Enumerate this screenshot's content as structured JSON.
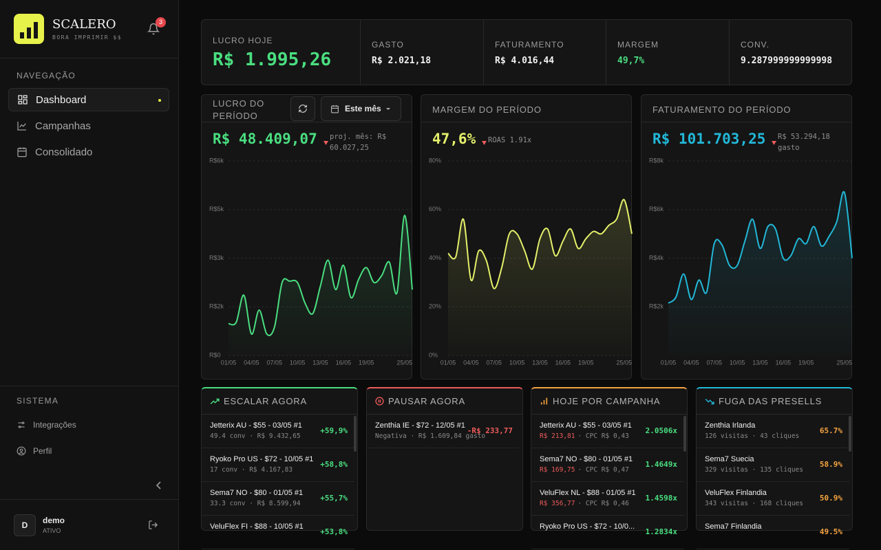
{
  "sidebar": {
    "brand": "SCALERO",
    "tagline": "BORA IMPRIMIR $$",
    "notifications": "3",
    "nav_title": "NAVEGAÇÃO",
    "nav": [
      "Dashboard",
      "Campanhas",
      "Consolidado"
    ],
    "system_title": "SISTEMA",
    "system": [
      "Integrações",
      "Perfil"
    ],
    "user": {
      "initial": "D",
      "name": "demo",
      "status": "ATIVO"
    }
  },
  "kpis": [
    {
      "label": "LUCRO HOJE",
      "value": "R$ 1.995,26"
    },
    {
      "label": "GASTO",
      "value": "R$ 2.021,18"
    },
    {
      "label": "FATURAMENTO",
      "value": "R$ 4.016,44"
    },
    {
      "label": "MARGEM",
      "value": "49,7%"
    },
    {
      "label": "CONV.",
      "value": "9.287999999999998"
    }
  ],
  "chart_data": [
    {
      "type": "line",
      "title": "LUCRO DO PERÍODO",
      "period_button": "Este mês",
      "headline": "R$ 48.409,07",
      "note": "proj. mês: R$ 60.027,25",
      "categories": [
        "01/05",
        null,
        null,
        "04/05",
        null,
        null,
        "07/05",
        null,
        null,
        "10/05",
        null,
        null,
        "13/05",
        null,
        null,
        "16/05",
        null,
        null,
        "19/05",
        null,
        null,
        null,
        null,
        null,
        "25/05"
      ],
      "series": [
        {
          "color": "#4ade80",
          "values": [
            980,
            1020,
            1860,
            660,
            1400,
            660,
            870,
            2250,
            2290,
            2250,
            1610,
            1290,
            2140,
            2940,
            2030,
            2780,
            1780,
            2350,
            2710,
            2250,
            2460,
            2880,
            1930,
            4320,
            2030
          ]
        }
      ],
      "ylim": [
        0,
        6000
      ],
      "yticks": [
        {
          "value": 0,
          "label": "R$0"
        },
        {
          "value": 1500,
          "label": "R$2k"
        },
        {
          "value": 3000,
          "label": "R$3k"
        },
        {
          "value": 4500,
          "label": "R$5k"
        },
        {
          "value": 6000,
          "label": "R$6k"
        }
      ],
      "grid": true
    },
    {
      "type": "line",
      "title": "MARGEM DO PERÍODO",
      "headline": "47,6%",
      "note": "ROAS 1.91x",
      "categories": [
        "01/05",
        null,
        null,
        "04/05",
        null,
        null,
        "07/05",
        null,
        null,
        "10/05",
        null,
        null,
        "13/05",
        null,
        null,
        "16/05",
        null,
        null,
        "19/05",
        null,
        null,
        null,
        null,
        null,
        "25/05"
      ],
      "series": [
        {
          "color": "#e4f06a",
          "values": [
            42,
            40.5,
            56,
            31,
            43,
            39,
            27.5,
            36,
            50,
            50,
            43,
            35.5,
            48,
            52,
            41,
            47,
            52,
            44,
            48,
            51,
            50,
            53.5,
            56,
            64,
            50
          ]
        }
      ],
      "ylim": [
        0,
        80
      ],
      "yticks": [
        {
          "value": 0,
          "label": "0%"
        },
        {
          "value": 20,
          "label": "20%"
        },
        {
          "value": 40,
          "label": "40%"
        },
        {
          "value": 60,
          "label": "60%"
        },
        {
          "value": 80,
          "label": "80%"
        }
      ],
      "grid": true
    },
    {
      "type": "line",
      "title": "FATURAMENTO DO PERÍODO",
      "headline": "R$ 101.703,25",
      "note": "R$ 53.294,18 gasto",
      "categories": [
        "01/05",
        null,
        null,
        "04/05",
        null,
        null,
        "07/05",
        null,
        null,
        "10/05",
        null,
        null,
        "13/05",
        null,
        null,
        "16/05",
        null,
        null,
        "19/05",
        null,
        null,
        null,
        null,
        null,
        "25/05"
      ],
      "series": [
        {
          "color": "#22b8d8",
          "values": [
            2150,
            2400,
            3350,
            2300,
            3100,
            2600,
            4600,
            4550,
            3700,
            3700,
            4700,
            5600,
            4400,
            5300,
            5200,
            4000,
            4100,
            4800,
            4600,
            5300,
            4500,
            4900,
            5500,
            6700,
            4000
          ]
        }
      ],
      "ylim": [
        0,
        8000
      ],
      "yticks": [
        {
          "value": 2000,
          "label": "R$2k"
        },
        {
          "value": 4000,
          "label": "R$4k"
        },
        {
          "value": 6000,
          "label": "R$6k"
        },
        {
          "value": 8000,
          "label": "R$8k"
        }
      ],
      "grid": true
    }
  ],
  "panels": [
    {
      "title": "ESCALAR AGORA",
      "items": [
        {
          "name": "Jetterix AU - $55 - 03/05 #1",
          "meta": "49.4 conv · R$ 9.432,65",
          "value": "+59,9%"
        },
        {
          "name": "Ryoko Pro US - $72 - 10/05 #1",
          "meta": "17 conv · R$ 4.167,83",
          "value": "+58,8%"
        },
        {
          "name": "Sema7 NO - $80 - 01/05 #1",
          "meta": "33.3 conv · R$ 8.599,94",
          "value": "+55,7%"
        },
        {
          "name": "VeluFlex FI - $88 - 10/05 #1",
          "value": "+53,8%"
        }
      ]
    },
    {
      "title": "PAUSAR AGORA",
      "items": [
        {
          "name": "Zenthia IE - $72 - 12/05 #1",
          "meta": "Negativa · R$ 1.609,84 gasto",
          "value": "-R$ 233,77"
        }
      ]
    },
    {
      "title": "HOJE POR CAMPANHA",
      "items": [
        {
          "name": "Jetterix AU - $55 - 03/05 #1",
          "cost": "R$ 213,81",
          "meta": "· CPC R$ 0,43",
          "value": "2.0506x"
        },
        {
          "name": "Sema7 NO - $80 - 01/05 #1",
          "cost": "R$ 169,75",
          "meta": "· CPC R$ 0,47",
          "value": "1.4649x"
        },
        {
          "name": "VeluFlex NL - $88 - 01/05 #1",
          "cost": "R$ 356,77",
          "meta": "· CPC R$ 0,46",
          "value": "1.4598x"
        },
        {
          "name": "Ryoko Pro US - $72 - 10/0...",
          "value": "1.2834x"
        }
      ]
    },
    {
      "title": "FUGA DAS PRESELLS",
      "items": [
        {
          "name": "Zenthia Irlanda",
          "meta": "126 visitas · 43 cliques",
          "value": "65.7%"
        },
        {
          "name": "Sema7 Suecia",
          "meta": "329 visitas · 135 cliques",
          "value": "58.9%"
        },
        {
          "name": "VeluFlex Finlandia",
          "meta": "343 visitas · 168 cliques",
          "value": "50.9%"
        },
        {
          "name": "Sema7 Finlandia",
          "value": "49.5%"
        }
      ]
    }
  ]
}
